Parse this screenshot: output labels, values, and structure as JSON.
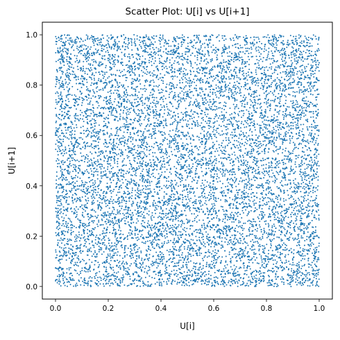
{
  "chart_data": {
    "type": "scatter",
    "title": "Scatter Plot: U[i] vs U[i+1]",
    "xlabel": "U[i]",
    "ylabel": "U[i+1]",
    "xlim": [
      -0.05,
      1.05
    ],
    "ylim": [
      -0.05,
      1.05
    ],
    "xticks": [
      "0.0",
      "0.2",
      "0.4",
      "0.6",
      "0.8",
      "1.0"
    ],
    "yticks": [
      "0.0",
      "0.2",
      "0.4",
      "0.6",
      "0.8",
      "1.0"
    ],
    "grid": false,
    "legend": "none",
    "point_color": "#1f77b4",
    "n_points": 9999,
    "distribution": "uniform pairs of consecutive values in [0, 1]"
  }
}
